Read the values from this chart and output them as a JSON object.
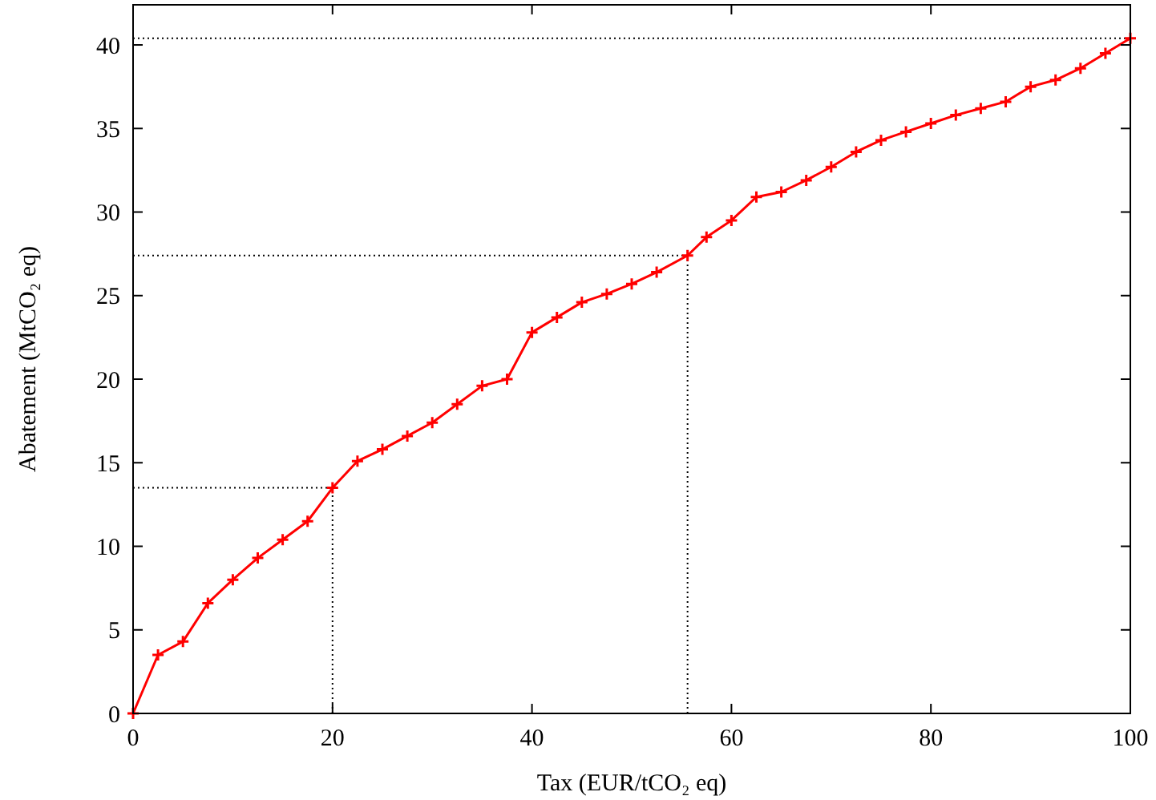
{
  "chart_data": {
    "type": "line",
    "xlabel": "Tax (EUR/tCO₂ eq)",
    "ylabel": "Abatement (MtCO₂ eq)",
    "xlim": [
      0,
      100
    ],
    "ylim": [
      0,
      42.4
    ],
    "xticks": [
      0,
      20,
      40,
      60,
      80,
      100
    ],
    "yticks": [
      0,
      5,
      10,
      15,
      20,
      25,
      30,
      35,
      40
    ],
    "marker": "cross",
    "line_style": "solid",
    "grid": false,
    "series": [
      {
        "color": "#ff0000",
        "x": [
          0,
          2.5,
          5,
          7.5,
          10,
          12.5,
          15,
          17.5,
          20,
          22.5,
          25,
          27.5,
          30,
          32.5,
          35,
          37.5,
          40,
          42.5,
          45,
          47.5,
          50,
          52.5,
          55.6,
          57.5,
          60,
          62.5,
          65,
          67.5,
          70,
          72.5,
          75,
          77.5,
          80,
          82.5,
          85,
          87.5,
          90,
          92.5,
          95,
          97.5,
          100
        ],
        "values": [
          0,
          3.5,
          4.3,
          6.6,
          8.0,
          9.3,
          10.4,
          11.5,
          13.5,
          15.1,
          15.8,
          16.6,
          17.4,
          18.5,
          19.6,
          20.0,
          22.8,
          23.7,
          24.6,
          25.1,
          25.7,
          26.4,
          27.4,
          28.5,
          29.5,
          30.9,
          31.2,
          31.9,
          32.7,
          33.6,
          34.3,
          34.8,
          35.3,
          35.8,
          36.2,
          36.6,
          37.5,
          37.9,
          38.6,
          39.5,
          40.4
        ]
      }
    ],
    "ref_lines": [
      {
        "axis": "x",
        "value": 20,
        "line_style": "dotted",
        "color": "#000000"
      },
      {
        "axis": "x",
        "value": 55.6,
        "line_style": "dotted",
        "color": "#000000"
      },
      {
        "axis": "y",
        "value": 13.5,
        "line_style": "dotted",
        "color": "#000000"
      },
      {
        "axis": "y",
        "value": 27.4,
        "line_style": "dotted",
        "color": "#000000"
      },
      {
        "axis": "y",
        "value": 40.4,
        "line_style": "dotted",
        "color": "#000000"
      }
    ]
  }
}
